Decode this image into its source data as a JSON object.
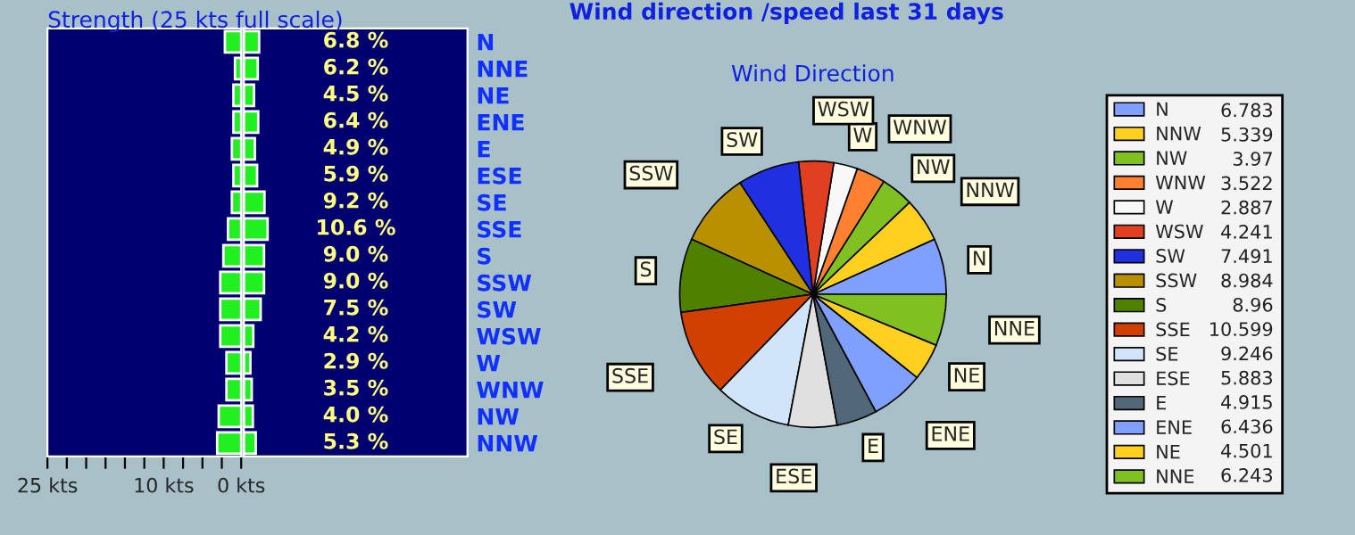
{
  "chart_data": [
    {
      "type": "bar",
      "orientation": "horizontal",
      "title": "Strength (25 kts full scale)",
      "categories": [
        null,
        null,
        null,
        null,
        null,
        null,
        null,
        null,
        null,
        null,
        null,
        null,
        null,
        null,
        null,
        null
      ],
      "series": [
        {
          "color": "#20f020",
          "values": [
            2.1,
            0.8,
            1.0,
            1.0,
            1.2,
            1.0,
            1.2,
            1.7,
            2.3,
            2.7,
            2.7,
            2.7,
            1.9,
            1.9,
            2.9,
            3.1
          ]
        }
      ],
      "xlim": [
        25,
        0
      ],
      "xticks": [
        {
          "value": 25,
          "label": "25 kts"
        },
        {
          "value": 22.5,
          "label": null
        },
        {
          "value": 20,
          "label": null
        },
        {
          "value": 17.5,
          "label": null
        },
        {
          "value": 15,
          "label": null
        },
        {
          "value": 12.5,
          "label": null
        },
        {
          "value": 10,
          "label": "10 kts"
        },
        {
          "value": 7.5,
          "label": null
        },
        {
          "value": 5,
          "label": null
        },
        {
          "value": 2.5,
          "label": null
        },
        {
          "value": 0,
          "label": "0 kts"
        }
      ],
      "tick_labels": "x"
    },
    {
      "type": "bar",
      "orientation": "horizontal",
      "categories": [
        "N",
        "NNE",
        "NE",
        "ENE",
        "E",
        "ESE",
        "SE",
        "SSE",
        "S",
        "SSW",
        "SW",
        "WSW",
        "W",
        "WNW",
        "NW",
        "NNW"
      ],
      "series": [
        {
          "color": "#20f020",
          "values": [
            6.8,
            6.2,
            4.5,
            6.4,
            4.9,
            5.9,
            9.2,
            10.6,
            9.0,
            9.0,
            7.5,
            4.2,
            2.9,
            3.5,
            4.0,
            5.3
          ],
          "value_labels": [
            "6.8 %",
            "6.2 %",
            "4.5 %",
            "6.4 %",
            "4.9 %",
            "5.9 %",
            "9.2 %",
            "10.6 %",
            "9.0 %",
            "9.0 %",
            "7.5 %",
            "4.2 %",
            "2.9 %",
            "3.5 %",
            "4.0 %",
            "5.3 %"
          ]
        }
      ],
      "xlim": [
        0,
        100
      ],
      "tick_labels": "y"
    },
    {
      "type": "pie",
      "title": "Wind direction /speed last 31 days",
      "subtitle": "Wind Direction",
      "categories": [
        "N",
        "NNW",
        "NW",
        "WNW",
        "W",
        "WSW",
        "SW",
        "SSW",
        "S",
        "SSE",
        "SE",
        "ESE",
        "E",
        "ENE",
        "NE",
        "NNE"
      ],
      "values": [
        6.783,
        5.339,
        3.97,
        3.522,
        2.887,
        4.241,
        7.491,
        8.984,
        8.96,
        10.599,
        9.246,
        5.883,
        4.915,
        6.436,
        4.501,
        6.243
      ],
      "colors": [
        "#80a0ff",
        "#ffd020",
        "#80c020",
        "#ff8030",
        "#f8f8f8",
        "#e04020",
        "#2030e0",
        "#b89000",
        "#508000",
        "#d04000",
        "#d0e4fa",
        "#e0e0e0",
        "#506878",
        "#80a0ff",
        "#ffd020",
        "#80c020"
      ],
      "legend": "right",
      "data_labels": true
    }
  ]
}
